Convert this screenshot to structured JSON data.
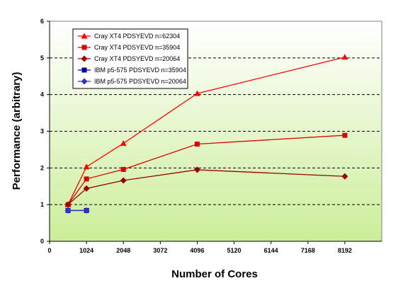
{
  "chart_data": {
    "type": "line",
    "xlabel": "Number of Cores",
    "ylabel": "Performance (arbitrary)",
    "xlim": [
      0,
      9216
    ],
    "ylim": [
      0,
      6
    ],
    "x_ticks": [
      0,
      1024,
      2048,
      3072,
      4096,
      5120,
      6144,
      7168,
      8192
    ],
    "y_ticks": [
      0,
      1,
      2,
      3,
      4,
      5,
      6
    ],
    "grid": "horizontal dashed",
    "legend_position": "top-left",
    "plot_background": "gradient white to light green",
    "series": [
      {
        "name": "Cray XT4 PDSYEVD n=62304",
        "color": "#ff0000",
        "marker": "triangle",
        "x": [
          512,
          1024,
          2048,
          4096,
          8192
        ],
        "y": [
          1.0,
          2.03,
          2.67,
          4.03,
          5.02
        ]
      },
      {
        "name": "Cray XT4 PDSYEVD n=35904",
        "color": "#dd0000",
        "marker": "square",
        "x": [
          512,
          1024,
          2048,
          4096,
          8192
        ],
        "y": [
          1.0,
          1.7,
          1.96,
          2.65,
          2.89
        ]
      },
      {
        "name": "Cray XT4 PDSYEVD n=20064",
        "color": "#990000",
        "marker": "diamond",
        "x": [
          512,
          1024,
          2048,
          4096,
          8192
        ],
        "y": [
          1.0,
          1.44,
          1.66,
          1.95,
          1.77
        ]
      },
      {
        "name": "IBM p5-575 PDSYEVD n=35904",
        "color": "#000099",
        "marker": "square",
        "x": [
          512,
          1024
        ],
        "y": [
          0.84,
          0.84
        ]
      },
      {
        "name": "IBM p5-575 PDSYEVD n=20064",
        "color": "#3333cc",
        "marker": "diamond",
        "x": [
          512,
          1024
        ],
        "y": [
          0.84,
          0.84
        ]
      }
    ]
  }
}
